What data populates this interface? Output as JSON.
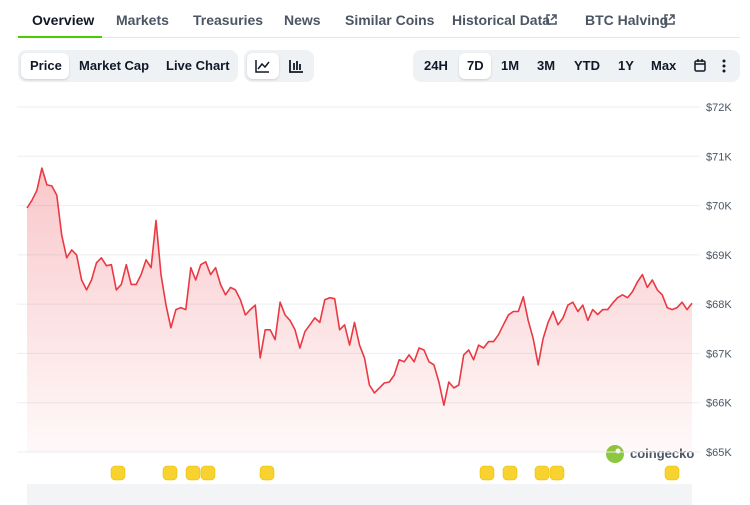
{
  "tabs": [
    "Overview",
    "Markets",
    "Treasuries",
    "News",
    "Similar Coins",
    "Historical Data",
    "BTC Halving"
  ],
  "view_toggles": [
    "Price",
    "Market Cap",
    "Live Chart"
  ],
  "ranges": [
    "24H",
    "7D",
    "1M",
    "3M",
    "YTD",
    "1Y",
    "Max"
  ],
  "watermark": "coingecko",
  "chart_data": {
    "type": "area",
    "color": "#ea3943",
    "grid": true,
    "ylim": [
      65000,
      72000
    ],
    "yticks": [
      {
        "value": 65000,
        "label": "$65K"
      },
      {
        "value": 66000,
        "label": "$66K"
      },
      {
        "value": 67000,
        "label": "$67K"
      },
      {
        "value": 68000,
        "label": "$68K"
      },
      {
        "value": 69000,
        "label": "$69K"
      },
      {
        "value": 70000,
        "label": "$70K"
      },
      {
        "value": 71000,
        "label": "$71K"
      },
      {
        "value": 72000,
        "label": "$72K"
      }
    ],
    "values": [
      69950,
      70110,
      70310,
      70760,
      70420,
      70400,
      70210,
      69400,
      68940,
      69100,
      69000,
      68490,
      68290,
      68490,
      68840,
      68940,
      68780,
      68800,
      68290,
      68400,
      68800,
      68400,
      68400,
      68600,
      68900,
      68740,
      69700,
      68600,
      67980,
      67520,
      67890,
      67930,
      67890,
      68740,
      68490,
      68800,
      68860,
      68600,
      68740,
      68400,
      68190,
      68340,
      68290,
      68090,
      67780,
      67890,
      67980,
      66910,
      67480,
      67480,
      67280,
      68040,
      67780,
      67670,
      67480,
      67110,
      67440,
      67580,
      67720,
      67630,
      68090,
      68130,
      68110,
      67480,
      67580,
      67170,
      67630,
      67170,
      66910,
      66360,
      66200,
      66300,
      66400,
      66420,
      66560,
      66870,
      66830,
      66970,
      66830,
      67110,
      67070,
      66830,
      66770,
      66420,
      65950,
      66420,
      66300,
      66360,
      66970,
      67070,
      66870,
      67170,
      67110,
      67240,
      67240,
      67380,
      67580,
      67780,
      67850,
      67850,
      68150,
      67670,
      67300,
      66770,
      67300,
      67630,
      67850,
      67580,
      67720,
      67980,
      68040,
      67850,
      67980,
      67670,
      67890,
      67790,
      67890,
      67890,
      68020,
      68130,
      68190,
      68130,
      68250,
      68450,
      68600,
      68340,
      68490,
      68290,
      68190,
      67930,
      67890,
      67930,
      68040,
      67890,
      68020
    ]
  }
}
